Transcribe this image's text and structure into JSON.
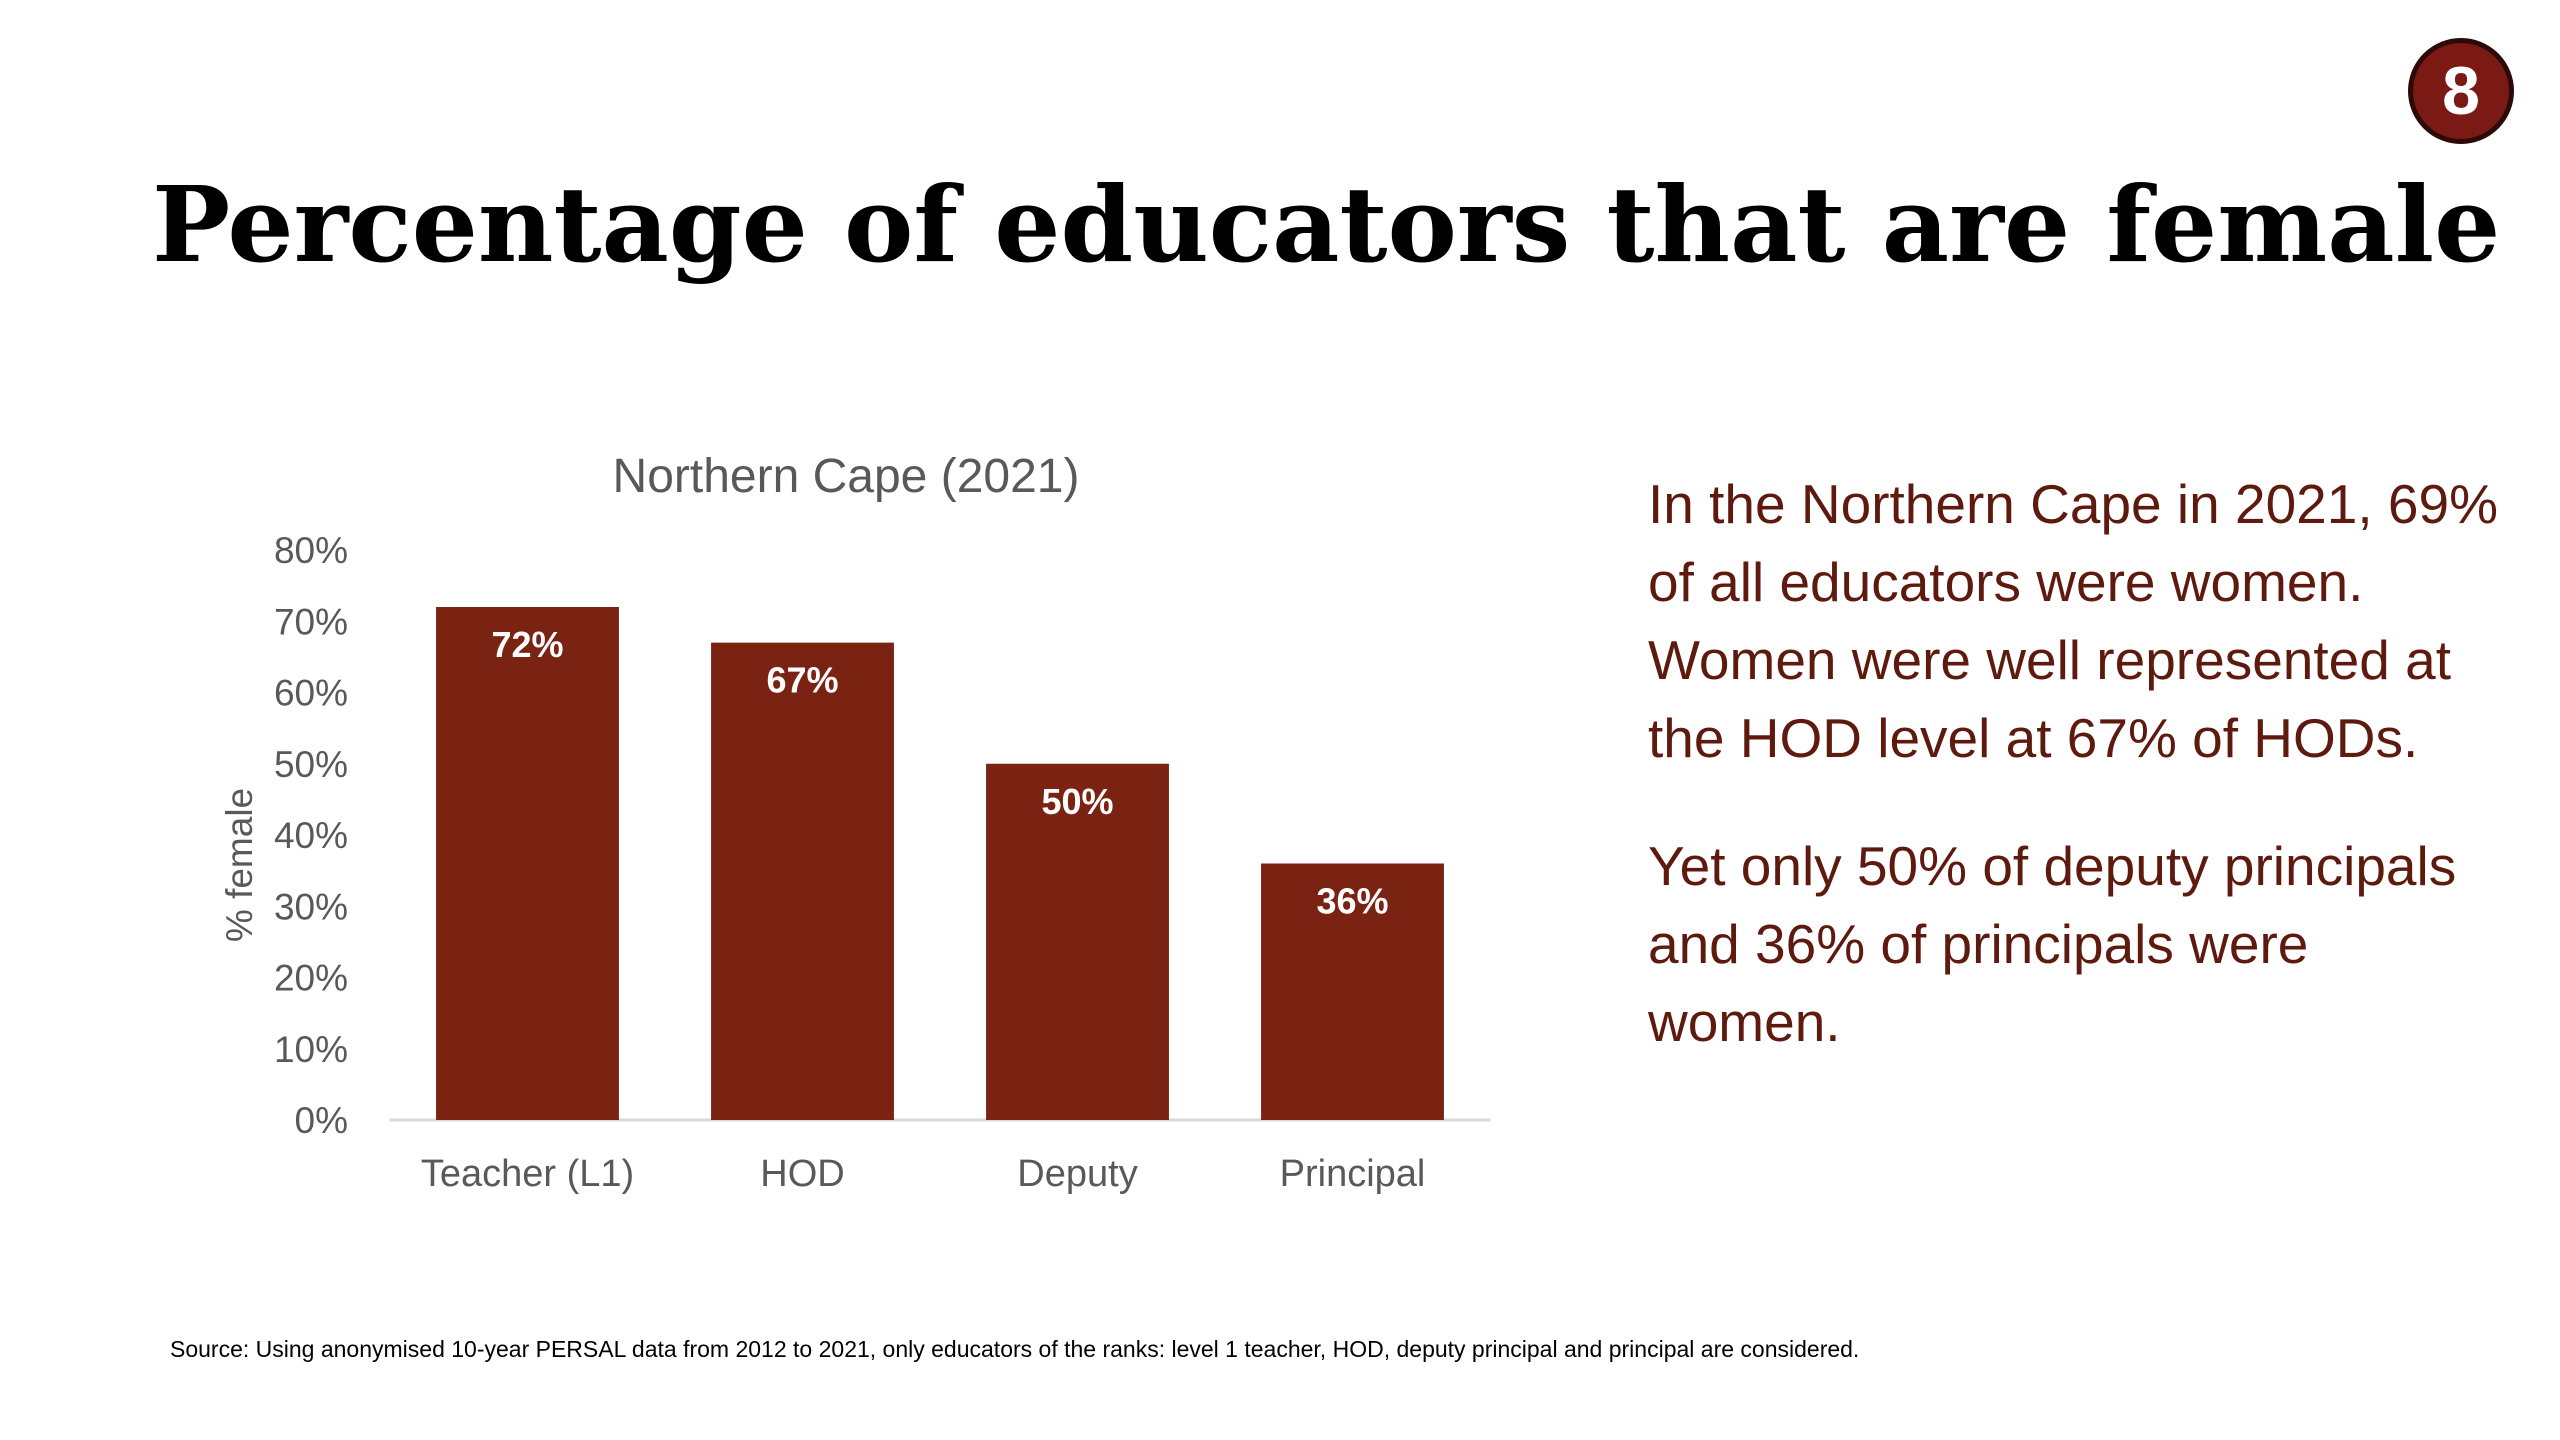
{
  "slide": {
    "title": "Percentage of educators that are female",
    "page_number": "8",
    "summary_paragraphs": [
      "In the Northern Cape in 2021, 69% of all educators were women. Women were well represented at the HOD level at 67% of HODs.",
      "Yet only 50% of deputy principals and 36% of principals were women."
    ],
    "source": "Source: Using anonymised 10-year PERSAL data from 2012 to 2021, only educators of the ranks: level 1 teacher, HOD, deputy principal and principal are considered."
  },
  "colors": {
    "bar": "#7b2312",
    "badge": "#7b1a14",
    "badge_border": "#2b0a08",
    "text_accent": "#5e1a0e",
    "axis_line": "#d9d9d9",
    "muted_text": "#595959"
  },
  "chart_data": {
    "type": "bar",
    "title": "Northern Cape (2021)",
    "ylabel": "% female",
    "xlabel": "",
    "categories": [
      "Teacher (L1)",
      "HOD",
      "Deputy",
      "Principal"
    ],
    "values": [
      72,
      67,
      50,
      36
    ],
    "data_labels": [
      "72%",
      "67%",
      "50%",
      "36%"
    ],
    "ylim": [
      0,
      80
    ],
    "yticks": [
      0,
      10,
      20,
      30,
      40,
      50,
      60,
      70,
      80
    ],
    "ytick_labels": [
      "0%",
      "10%",
      "20%",
      "30%",
      "40%",
      "50%",
      "60%",
      "70%",
      "80%"
    ],
    "grid": false,
    "legend": "none"
  }
}
